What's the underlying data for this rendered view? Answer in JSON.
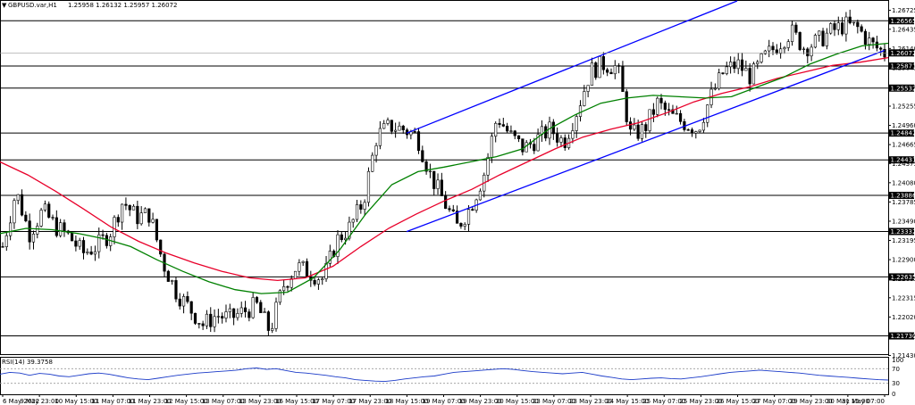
{
  "header": {
    "arrow": "▼",
    "symbol": "GBPUSD.var,H1",
    "ohlc": "1.25958 1.26132 1.25957 1.26072"
  },
  "rsi_label": "RSI(14) 39.3758",
  "colors": {
    "background": "#ffffff",
    "candles": "#000000",
    "level_lines": "#000000",
    "channel": "#0000ff",
    "ma_fast": "#008000",
    "ma_slow": "#e8002a",
    "rsi_line": "#1a3ac8",
    "rsi_levels": "#9a9a9a",
    "label_box": "#000000",
    "label_text": "#ffffff"
  },
  "chart_data": {
    "type": "candlestick",
    "symbol": "GBPUSD.var,H1",
    "ylim": [
      1.2145,
      1.2687
    ],
    "y_ticks": [
      "1.26725",
      "1.26435",
      "1.26140",
      "1.25845",
      "1.25550",
      "1.25255",
      "1.24960",
      "1.24665",
      "1.24375",
      "1.24080",
      "1.23785",
      "1.23490",
      "1.23195",
      "1.22900",
      "1.22605",
      "1.22315",
      "1.22020",
      "1.21725",
      "1.21430"
    ],
    "levels": [
      1.26565,
      1.25871,
      1.25532,
      1.24842,
      1.24431,
      1.23886,
      1.23332,
      1.22635,
      1.2173
    ],
    "level_labels": [
      "1.26565",
      "1.25871",
      "1.25532",
      "1.24842",
      "1.24431",
      "1.23886",
      "1.23332",
      "1.22635",
      "1.21730"
    ],
    "current_price": 1.26072,
    "current_label": "1.26072",
    "x_labels": [
      "6 May 2022",
      "9 May 23:00",
      "10 May 15:00",
      "11 May 07:00",
      "11 May 23:00",
      "12 May 15:00",
      "13 May 07:00",
      "13 May 23:00",
      "16 May 15:00",
      "17 May 07:00",
      "17 May 23:00",
      "18 May 15:00",
      "19 May 07:00",
      "19 May 23:00",
      "20 May 15:00",
      "23 May 07:00",
      "23 May 23:00",
      "24 May 15:00",
      "25 May 07:00",
      "25 May 23:00",
      "26 May 15:00",
      "27 May 07:00",
      "29 May 23:00",
      "30 May 15:00",
      "31 May 07:00"
    ],
    "price_path": [
      1.231,
      1.2395,
      1.233,
      1.2365,
      1.234,
      1.2325,
      1.23,
      1.231,
      1.233,
      1.238,
      1.2355,
      1.236,
      1.2285,
      1.224,
      1.2215,
      1.219,
      1.2205,
      1.22,
      1.221,
      1.222,
      1.218,
      1.225,
      1.228,
      1.227,
      1.226,
      1.232,
      1.234,
      1.238,
      1.248,
      1.2495,
      1.249,
      1.248,
      1.242,
      1.238,
      1.234,
      1.237,
      1.242,
      1.251,
      1.248,
      1.246,
      1.2475,
      1.249,
      1.247,
      1.252,
      1.258,
      1.259,
      1.2585,
      1.248,
      1.249,
      1.253,
      1.251,
      1.25,
      1.249,
      1.254,
      1.258,
      1.259,
      1.257,
      1.26,
      1.262,
      1.264,
      1.2615,
      1.2625,
      1.264,
      1.265,
      1.2645,
      1.262,
      1.2607
    ],
    "ma_fast": [
      1.233,
      1.2338,
      1.2336,
      1.233,
      1.2322,
      1.231,
      1.229,
      1.2272,
      1.2256,
      1.2244,
      1.2238,
      1.224,
      1.2262,
      1.2305,
      1.236,
      1.2405,
      1.2425,
      1.2432,
      1.244,
      1.2448,
      1.246,
      1.249,
      1.2512,
      1.253,
      1.2538,
      1.2542,
      1.254,
      1.2538,
      1.254,
      1.2555,
      1.257,
      1.259,
      1.2605,
      1.2618,
      1.2622
    ],
    "ma_slow": [
      1.244,
      1.242,
      1.2395,
      1.2368,
      1.234,
      1.2318,
      1.23,
      1.2285,
      1.2272,
      1.2262,
      1.2258,
      1.2262,
      1.228,
      1.231,
      1.2338,
      1.236,
      1.238,
      1.2398,
      1.242,
      1.244,
      1.246,
      1.2478,
      1.249,
      1.25,
      1.2515,
      1.2532,
      1.2545,
      1.2555,
      1.2568,
      1.2578,
      1.2588,
      1.2593,
      1.26
    ],
    "channel_upper": [
      [
        1.2484,
        0
      ],
      [
        1.2687,
        1
      ]
    ],
    "channel_lower": [
      [
        1.2333,
        0
      ],
      [
        1.2611,
        1
      ]
    ],
    "rsi": {
      "label": "RSI(14) 39.3758",
      "levels": [
        70,
        30
      ],
      "ticks": [
        "100",
        "70",
        "30",
        "0"
      ],
      "values": [
        55,
        60,
        58,
        52,
        57,
        55,
        50,
        48,
        52,
        56,
        58,
        55,
        50,
        45,
        42,
        40,
        44,
        48,
        52,
        55,
        58,
        60,
        62,
        64,
        66,
        70,
        72,
        68,
        70,
        65,
        60,
        58,
        55,
        52,
        48,
        45,
        40,
        38,
        36,
        35,
        38,
        42,
        45,
        48,
        50,
        55,
        60,
        62,
        64,
        66,
        68,
        70,
        68,
        65,
        62,
        60,
        58,
        56,
        58,
        60,
        55,
        50,
        46,
        42,
        40,
        42,
        44,
        45,
        43,
        42,
        45,
        48,
        52,
        56,
        60,
        62,
        64,
        66,
        64,
        62,
        60,
        58,
        55,
        52,
        50,
        48,
        46,
        44,
        42,
        40,
        39
      ]
    }
  }
}
